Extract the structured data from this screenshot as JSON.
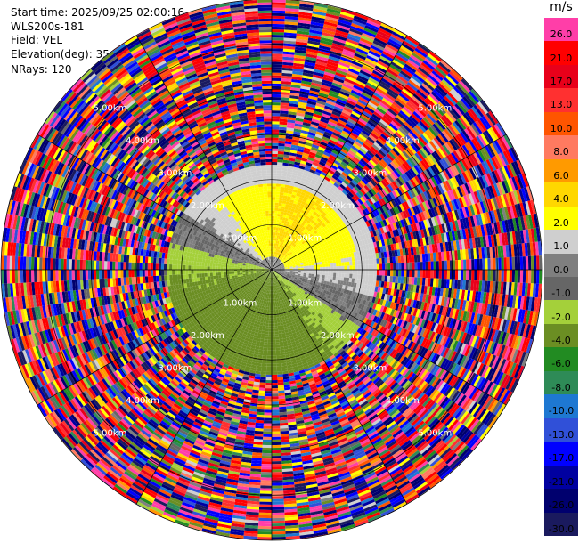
{
  "header": {
    "start_time": "Start time: 2025/09/25 02:00:16",
    "instrument": "WLS200s-181",
    "field": "Field: VEL",
    "elevation": "Elevation(deg): 35.00",
    "nrays": "NRays: 120"
  },
  "chart_data": {
    "type": "heatmap",
    "subtype": "polar-ppi",
    "field": "VEL",
    "nrays": 120,
    "elevation_deg": 35.0,
    "max_range_km": 6.0,
    "range_rings_km": [
      1,
      2,
      3,
      4,
      5,
      6
    ],
    "range_labels": [
      "1.00km",
      "2.00km",
      "3.00km",
      "4.00km",
      "5.00km"
    ],
    "colorbar": {
      "unit": "m/s",
      "ticks": [
        "26.0",
        "21.0",
        "17.0",
        "13.0",
        "10.0",
        "8.0",
        "6.0",
        "4.0",
        "2.0",
        "1.0",
        "0.0",
        "-1.0",
        "-2.0",
        "-4.0",
        "-6.0",
        "-8.0",
        "-10.0",
        "-13.0",
        "-17.0",
        "-21.0",
        "-26.0",
        "-30.0"
      ],
      "colors": [
        "#ff3ea8",
        "#ff0000",
        "#e8001a",
        "#ff3030",
        "#ff5500",
        "#ff7a60",
        "#ff9a00",
        "#ffd700",
        "#ffff00",
        "#cfcfcf",
        "#7f7f7f",
        "#666666",
        "#a4d03a",
        "#6b8e23",
        "#228b22",
        "#2e8b57",
        "#1e78d2",
        "#3050d8",
        "#0000ff",
        "#0000a0",
        "#00006e",
        "#1a1a5e"
      ]
    }
  }
}
